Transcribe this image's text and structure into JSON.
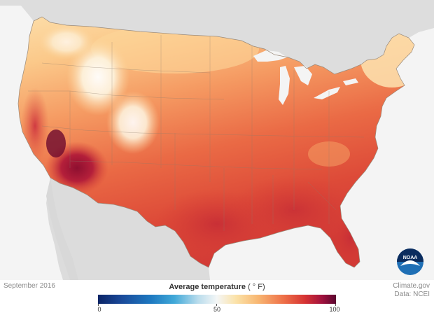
{
  "date_label": "September 2016",
  "credit": {
    "line1": "Climate.gov",
    "line2": "Data: NCEI"
  },
  "legend": {
    "title": "Average temperature",
    "unit": "( ° F)",
    "min_label": "0",
    "mid_label": "50",
    "max_label": "100",
    "min_value": 0,
    "mid_value": 50,
    "max_value": 100
  },
  "logo": {
    "text": "NOAA",
    "icon": "noaa-logo-icon"
  },
  "colors": {
    "cold": "#0b2466",
    "neutral": "#f4f6f6",
    "warm": "#f8b873",
    "hot": "#d63333",
    "hottest": "#5a0630",
    "background_land": "#dedede",
    "water": "#f4f4f4"
  }
}
